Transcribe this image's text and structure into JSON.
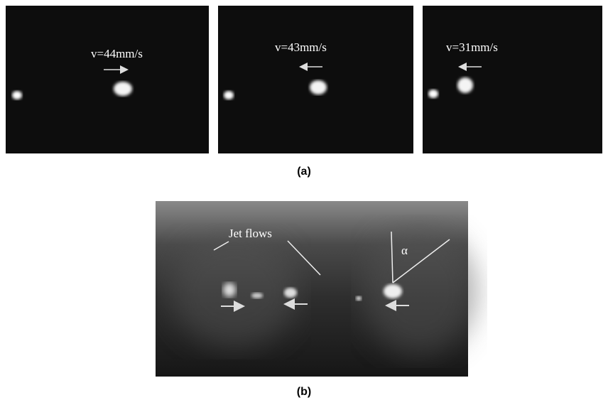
{
  "panel_a": {
    "frames": [
      {
        "label": "v=44mm/s"
      },
      {
        "label": "v=43mm/s"
      },
      {
        "label": "v=31mm/s"
      }
    ],
    "caption": "(a)"
  },
  "panel_b": {
    "annotation": "Jet flows",
    "angle_label": "α",
    "caption": "(b)"
  }
}
